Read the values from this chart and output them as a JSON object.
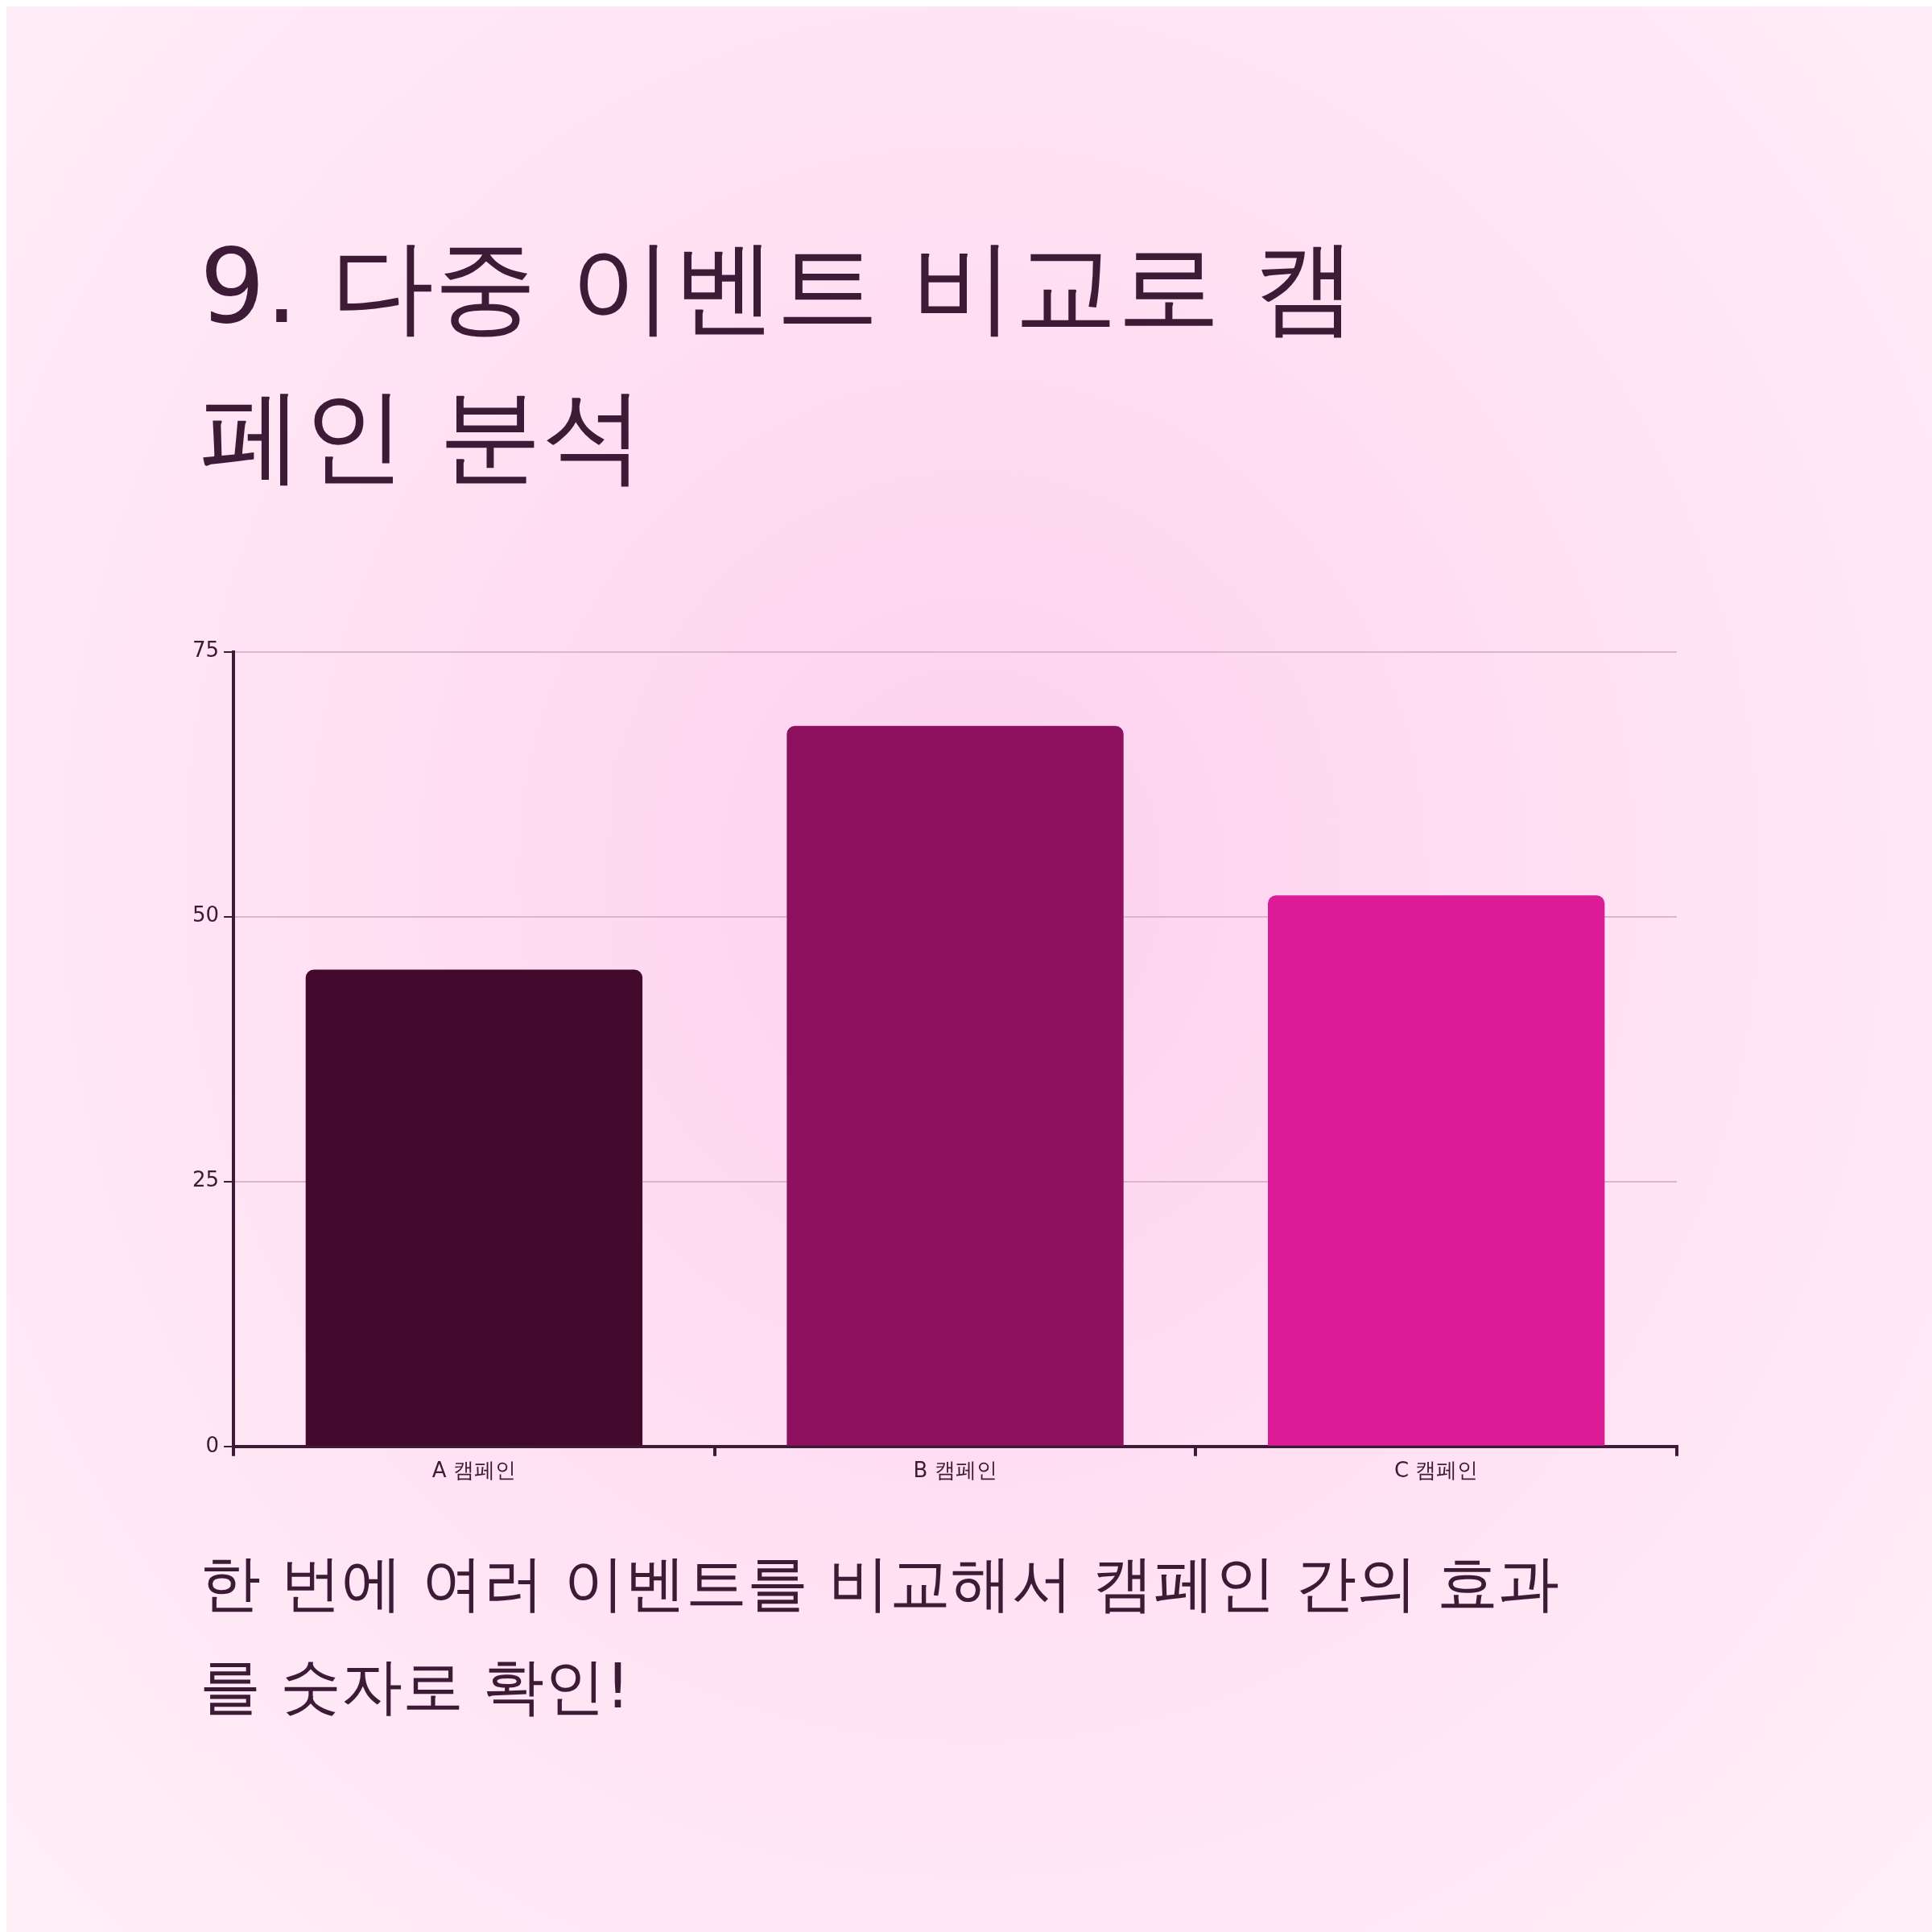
{
  "chart_data": {
    "type": "bar",
    "title": "9. 다중 이벤트 비교로 캠페인 분석",
    "categories": [
      "A 캠페인",
      "B 캠페인",
      "C 캠페인"
    ],
    "values": [
      45,
      68,
      52
    ],
    "colors": [
      "#430a2e",
      "#8e115f",
      "#dc1c96"
    ],
    "ylim": [
      0,
      75
    ],
    "yticks": [
      0,
      25,
      50,
      75
    ],
    "grid": "y",
    "annotations": [
      "한 번에 여러 이벤트를 비교해서 캠페인 간의 효과를 숫자로 확인!"
    ]
  }
}
